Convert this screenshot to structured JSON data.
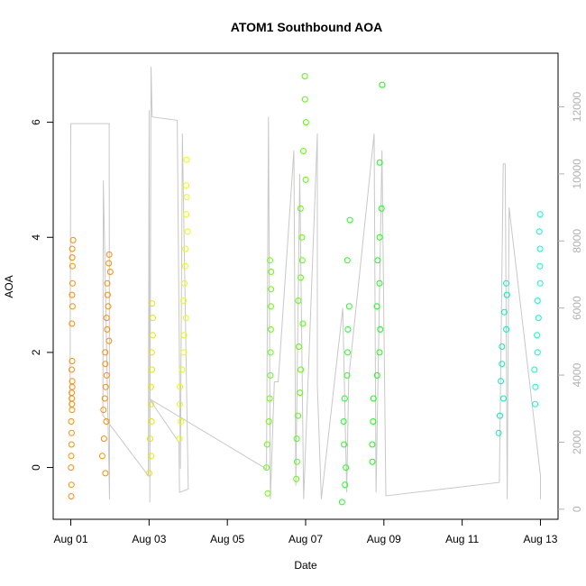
{
  "chart_data": {
    "type": "scatter",
    "title": "ATOM1 Southbound AOA",
    "xlabel": "Date",
    "ylabel": "AOA",
    "x_ticks": [
      "Aug 01",
      "Aug 03",
      "Aug 05",
      "Aug 07",
      "Aug 09",
      "Aug 11",
      "Aug 13"
    ],
    "x_tick_days": [
      1,
      3,
      5,
      7,
      9,
      11,
      13
    ],
    "xlim_days": [
      0.55,
      13.45
    ],
    "ylim": [
      -0.9,
      7.2
    ],
    "y_ticks": [
      0,
      2,
      4,
      6
    ],
    "y2_ticks": [
      0,
      2000,
      4000,
      6000,
      8000,
      10000,
      12000
    ],
    "y2lim": [
      -300,
      13600
    ],
    "grid": false,
    "legend": "none",
    "colors": {
      "line": "#c8c8c8",
      "axis": "#000000",
      "right_axis": "#b0b0b0"
    },
    "series": [
      {
        "day_start": 1.0,
        "day_end": 1.06,
        "color": "#ff8c00",
        "values": [
          -0.5,
          -0.3,
          0.0,
          0.2,
          0.4,
          0.6,
          0.8,
          1.0,
          1.1,
          1.2,
          1.3,
          1.4,
          1.5,
          1.7,
          1.85,
          2.5,
          2.8,
          3.0,
          3.2,
          3.5,
          3.65,
          3.8,
          3.95
        ]
      },
      {
        "day_start": 1.78,
        "day_end": 2.05,
        "color": "#ff8c00",
        "values": [
          -0.1,
          0.2,
          0.5,
          0.8,
          1.0,
          1.2,
          1.4,
          1.6,
          1.8,
          2.0,
          2.2,
          2.4,
          2.6,
          2.8,
          3.0,
          3.2,
          3.4,
          3.55,
          3.7
        ]
      },
      {
        "day_start": 3.0,
        "day_end": 3.12,
        "color": "#e6e600",
        "values": [
          -0.1,
          0.2,
          0.5,
          0.8,
          1.1,
          1.4,
          1.7,
          2.0,
          2.3,
          2.6,
          2.85
        ]
      },
      {
        "day_start": 3.75,
        "day_end": 4.05,
        "color": "#e6ff00",
        "values": [
          0.5,
          0.8,
          1.1,
          1.4,
          1.7,
          2.0,
          2.3,
          2.6,
          2.9,
          3.2,
          3.5,
          3.8,
          4.1,
          4.4,
          4.7,
          4.9,
          5.35
        ]
      },
      {
        "day_start": 5.98,
        "day_end": 6.16,
        "color": "#66ff00",
        "values": [
          -0.45,
          0.0,
          0.4,
          0.8,
          1.2,
          1.6,
          2.0,
          2.4,
          2.8,
          3.1,
          3.4,
          3.6
        ]
      },
      {
        "day_start": 6.72,
        "day_end": 7.05,
        "color": "#55ff00",
        "values": [
          -0.2,
          0.1,
          0.5,
          0.9,
          1.3,
          1.7,
          2.1,
          2.5,
          2.9,
          3.3,
          3.6,
          4.0,
          4.5,
          5.0,
          5.5,
          6.0,
          6.4,
          6.8
        ]
      },
      {
        "day_start": 7.92,
        "day_end": 8.15,
        "color": "#22ff22",
        "values": [
          -0.6,
          -0.3,
          0.0,
          0.4,
          0.8,
          1.2,
          1.6,
          2.0,
          2.4,
          2.8,
          3.6,
          4.3
        ]
      },
      {
        "day_start": 8.68,
        "day_end": 9.05,
        "color": "#11ff11",
        "values": [
          0.1,
          0.4,
          0.8,
          1.2,
          1.6,
          2.0,
          2.4,
          2.8,
          3.2,
          3.6,
          4.0,
          4.5,
          5.3,
          6.65
        ]
      },
      {
        "day_start": 11.9,
        "day_end": 12.25,
        "color": "#00f0b0",
        "values": [
          0.6,
          0.9,
          1.2,
          1.5,
          1.8,
          2.1,
          2.4,
          2.7,
          3.0,
          3.2
        ]
      },
      {
        "day_start": 12.82,
        "day_end": 13.05,
        "color": "#00ffc8",
        "values": [
          1.1,
          1.4,
          1.7,
          2.0,
          2.3,
          2.6,
          2.9,
          3.2,
          3.5,
          3.8,
          4.1,
          4.4
        ]
      }
    ],
    "line_series": {
      "axis": "right",
      "points": [
        [
          0.98,
          3000
        ],
        [
          1.0,
          11500
        ],
        [
          1.98,
          11500
        ],
        [
          1.99,
          300
        ],
        [
          1.83,
          9800
        ],
        [
          1.82,
          2800
        ],
        [
          2.98,
          1000
        ],
        [
          3.0,
          11900
        ],
        [
          3.02,
          200
        ],
        [
          3.05,
          13200
        ],
        [
          3.08,
          11700
        ],
        [
          3.72,
          11600
        ],
        [
          3.8,
          1200
        ],
        [
          3.85,
          11200
        ],
        [
          4.0,
          600
        ],
        [
          3.78,
          500
        ],
        [
          3.76,
          2000
        ],
        [
          3.0,
          3300
        ],
        [
          6.0,
          1200
        ],
        [
          6.05,
          11700
        ],
        [
          6.1,
          300
        ],
        [
          6.2,
          3800
        ],
        [
          6.3,
          3800
        ],
        [
          6.7,
          10700
        ],
        [
          6.75,
          700
        ],
        [
          6.85,
          10000
        ],
        [
          6.95,
          300
        ],
        [
          7.3,
          11200
        ],
        [
          7.3,
          3700
        ],
        [
          7.4,
          300
        ],
        [
          7.95,
          6000
        ],
        [
          8.05,
          500
        ],
        [
          8.1,
          3900
        ],
        [
          8.75,
          11200
        ],
        [
          8.8,
          500
        ],
        [
          8.95,
          10700
        ],
        [
          9.05,
          400
        ],
        [
          11.95,
          800
        ],
        [
          12.05,
          10300
        ],
        [
          12.1,
          10300
        ],
        [
          12.15,
          300
        ],
        [
          12.2,
          9000
        ],
        [
          13.0,
          1000
        ],
        [
          13.0,
          300
        ]
      ]
    }
  }
}
